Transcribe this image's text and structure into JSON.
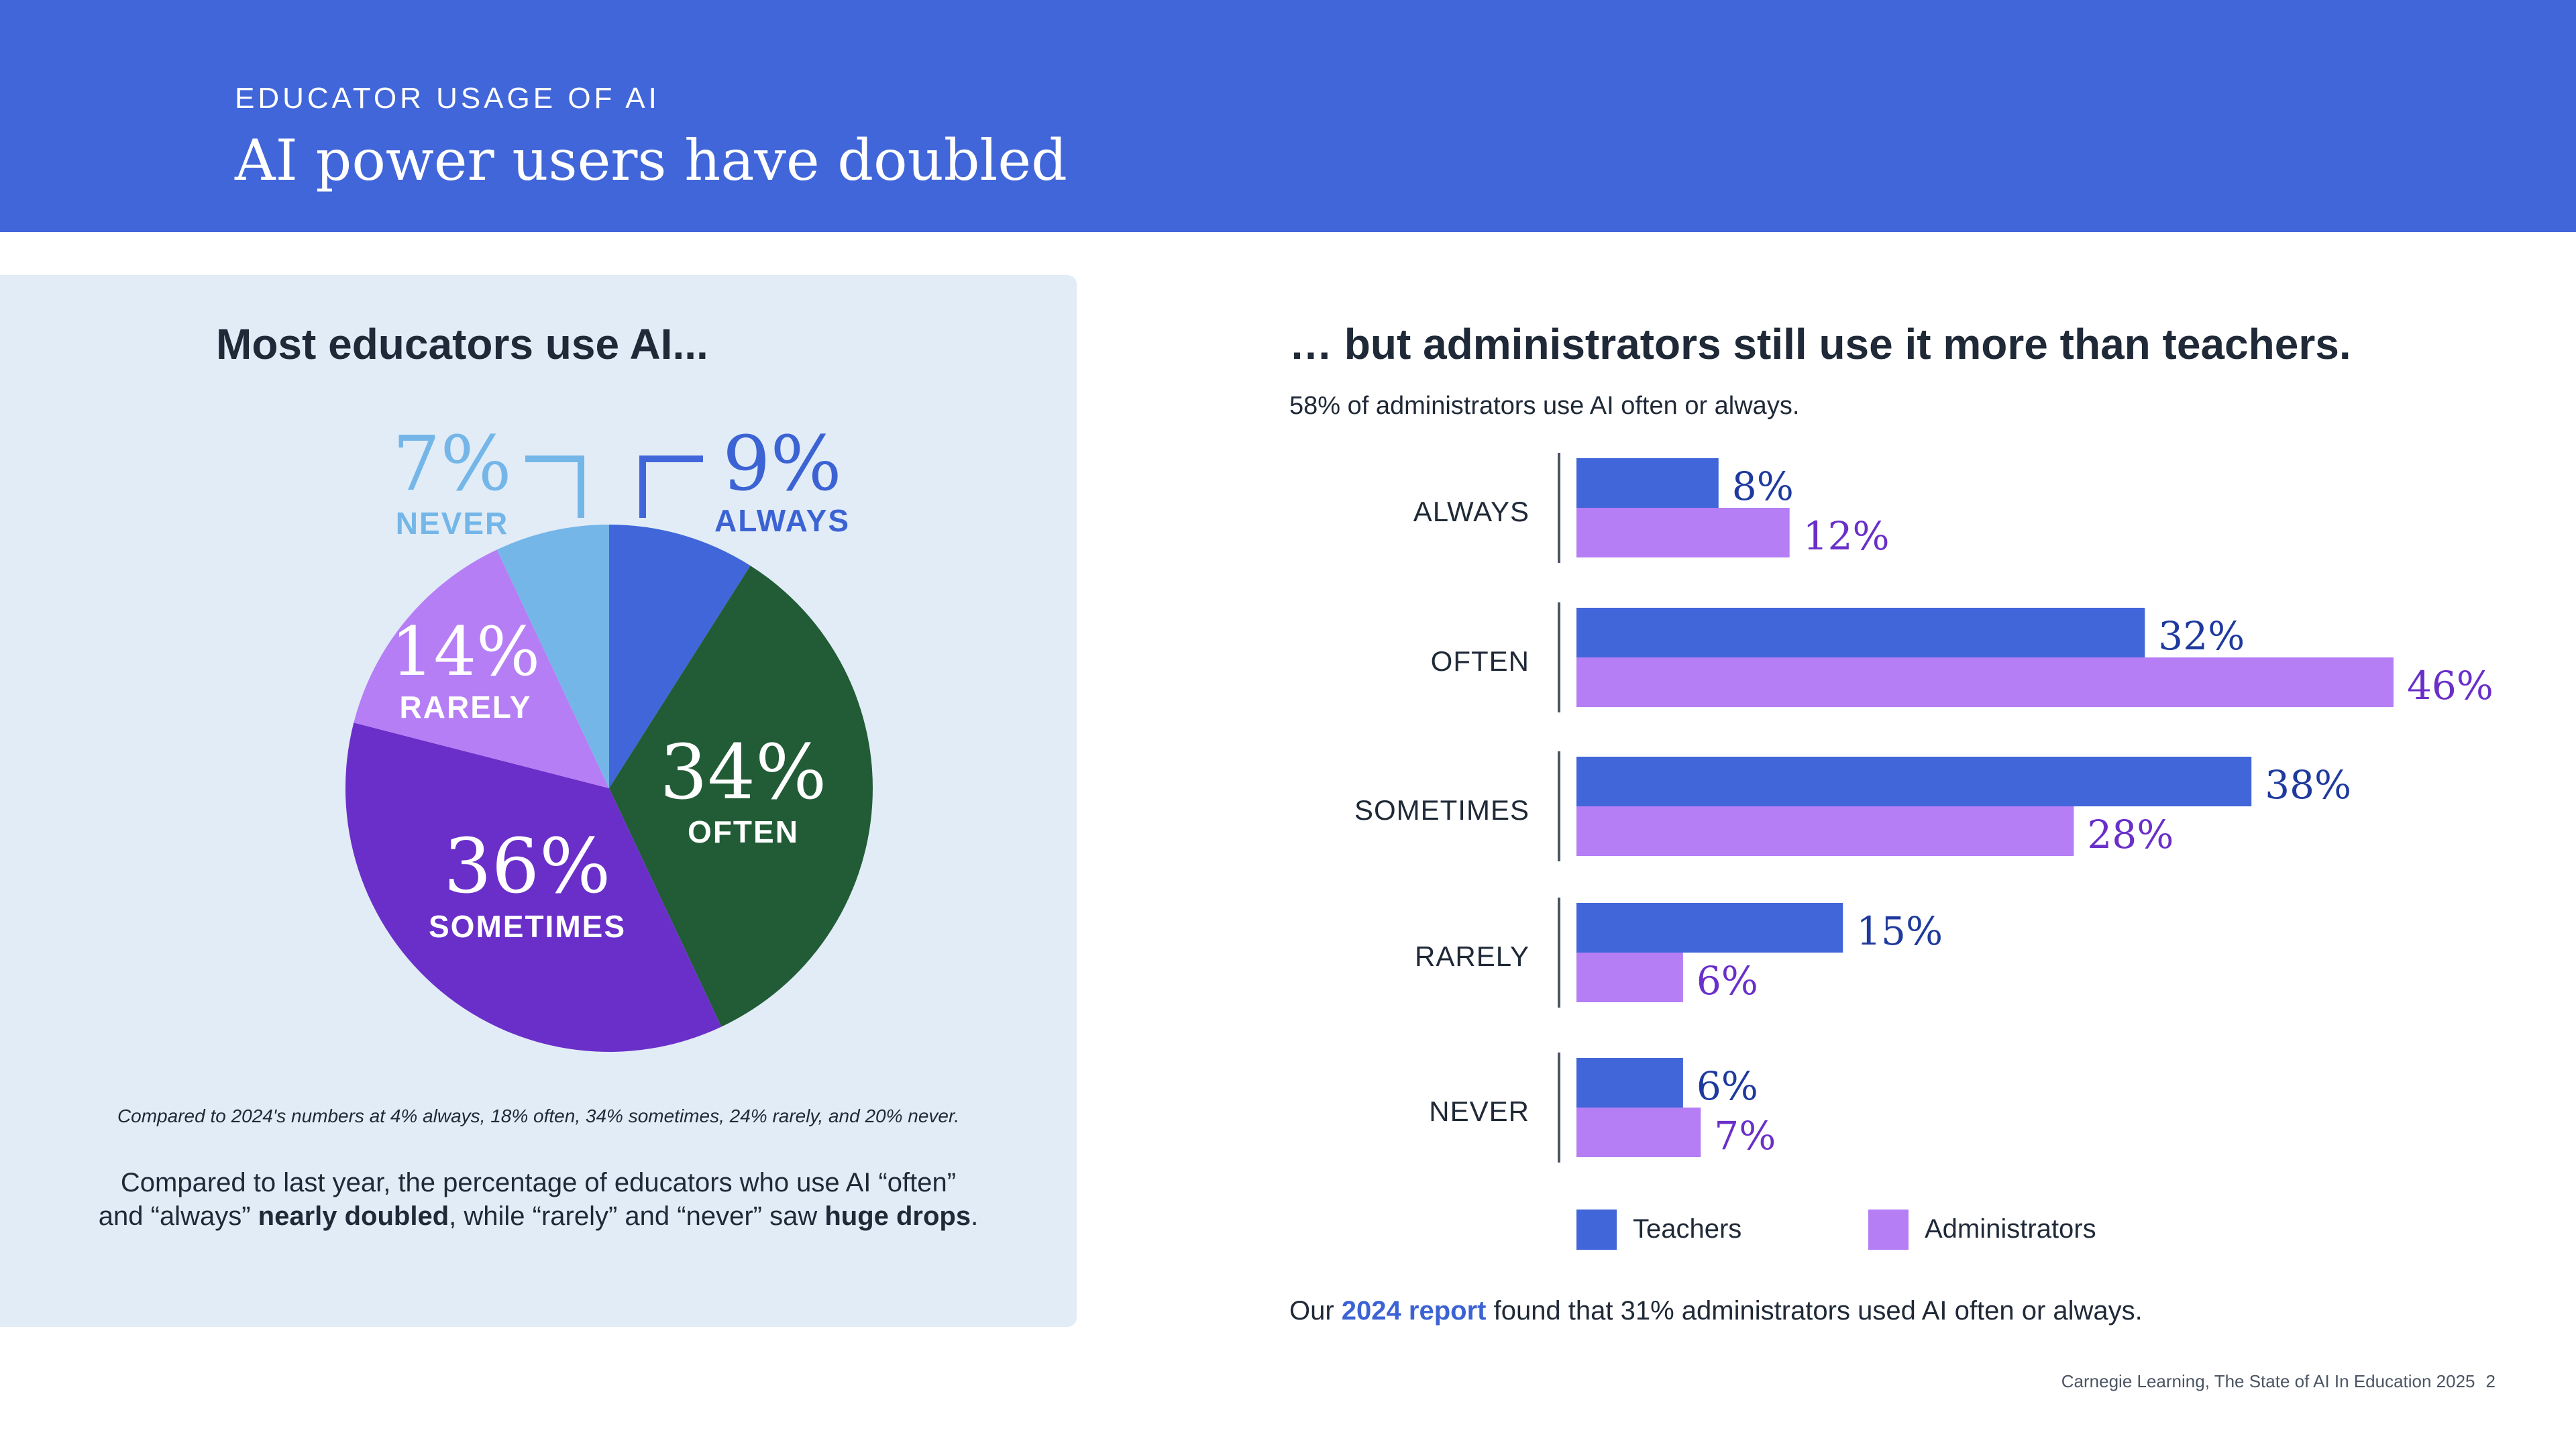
{
  "header": {
    "eyebrow": "EDUCATOR USAGE OF AI",
    "title": "AI power users have doubled"
  },
  "left": {
    "heading": "Most educators use AI...",
    "footnote_small": "Compared to 2024's numbers at 4% always, 18% often, 34% sometimes, 24% rarely, and 20% never.",
    "footnote_large": {
      "line1": "Compared to last year, the percentage of educators who use AI “often”",
      "line2_part1": "and “always” ",
      "line2_bold1": "nearly doubled",
      "line2_part2": ", while “rarely” and “never” saw ",
      "line2_bold2": "huge drops",
      "line2_part3": "."
    }
  },
  "right": {
    "heading": "… but administrators still use it more than teachers.",
    "subtitle": "58% of administrators use AI often or always.",
    "report_note": {
      "before": "Our ",
      "link": "2024 report",
      "after": " found that 31% administrators used AI often or always."
    }
  },
  "footer": {
    "source": "Carnegie Learning, The State of AI In Education 2025",
    "page": "2"
  },
  "colors": {
    "header_bg": "#4166d9",
    "panel_bg": "#e1ecf7",
    "always": "#4166d9",
    "often": "#215c36",
    "sometimes": "#6a2fc9",
    "rarely": "#b57ef5",
    "never": "#74b6e8",
    "teachers": "#4166d9",
    "administrators": "#b57ef5",
    "teachers_label": "#1e3a9e",
    "administrators_label": "#6a2fc9"
  },
  "chart_data": [
    {
      "type": "pie",
      "slices": [
        {
          "label": "ALWAYS",
          "value": 9,
          "display": "9%"
        },
        {
          "label": "OFTEN",
          "value": 34,
          "display": "34%"
        },
        {
          "label": "SOMETIMES",
          "value": 36,
          "display": "36%"
        },
        {
          "label": "RARELY",
          "value": 14,
          "display": "14%"
        },
        {
          "label": "NEVER",
          "value": 7,
          "display": "7%"
        }
      ]
    },
    {
      "type": "bar",
      "orientation": "horizontal",
      "categories": [
        "ALWAYS",
        "OFTEN",
        "SOMETIMES",
        "RARELY",
        "NEVER"
      ],
      "series": [
        {
          "name": "Teachers",
          "values": [
            8,
            32,
            38,
            15,
            6
          ],
          "labels": [
            "8%",
            "32%",
            "38%",
            "15%",
            "6%"
          ]
        },
        {
          "name": "Administrators",
          "values": [
            12,
            46,
            28,
            6,
            7
          ],
          "labels": [
            "12%",
            "46%",
            "28%",
            "6%",
            "7%"
          ]
        }
      ],
      "xlim": [
        0,
        46
      ],
      "legend": "bottom",
      "grid": false
    }
  ]
}
